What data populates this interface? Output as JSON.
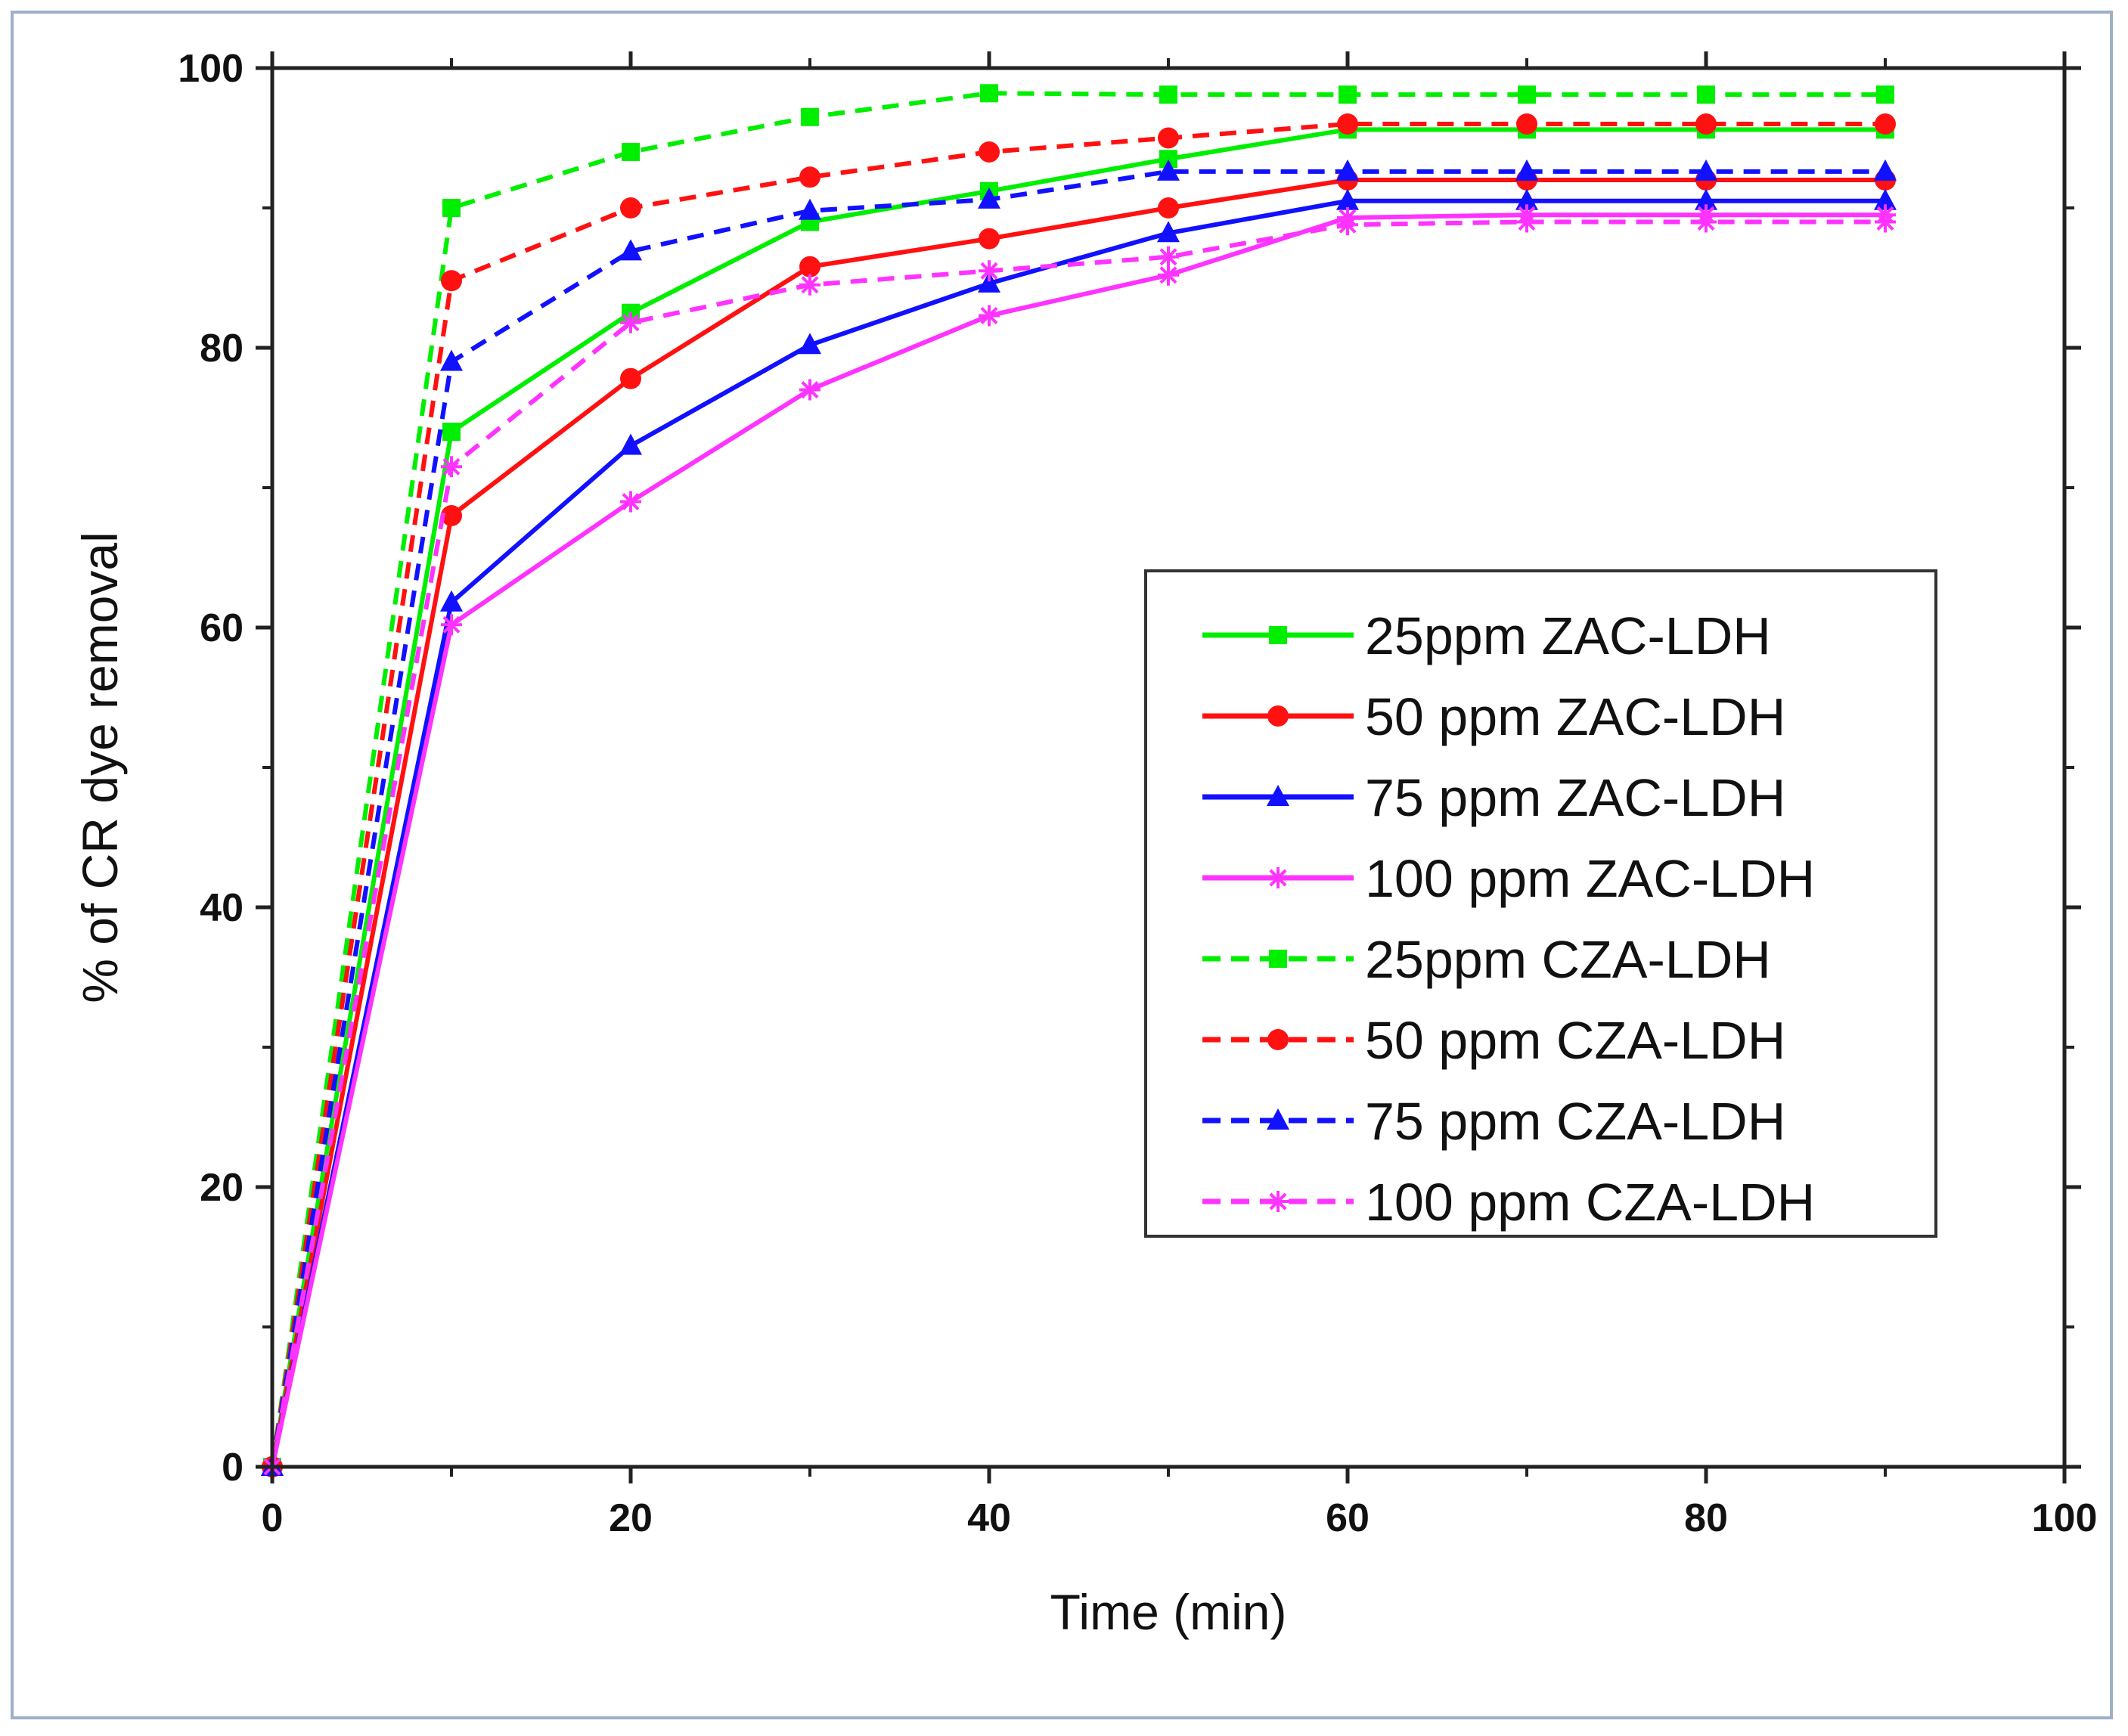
{
  "chart_data": {
    "type": "line",
    "title": "",
    "xlabel": "Time (min)",
    "ylabel": "% of CR dye removal",
    "xlim": [
      0,
      100
    ],
    "ylim": [
      0,
      100
    ],
    "xticks": [
      0,
      20,
      40,
      60,
      80,
      100
    ],
    "yticks": [
      0,
      20,
      40,
      60,
      80,
      100
    ],
    "grid": false,
    "legend_position": "center-right",
    "x": [
      0,
      10,
      20,
      30,
      40,
      50,
      60,
      70,
      80,
      90
    ],
    "series": [
      {
        "name": "25ppm ZAC-LDH",
        "color": "#00ee00",
        "dash": "solid",
        "marker": "square",
        "values": [
          0,
          74,
          82.5,
          89,
          91.2,
          93.5,
          95.6,
          95.6,
          95.6,
          95.6
        ]
      },
      {
        "name": "50 ppm ZAC-LDH",
        "color": "#ff1111",
        "dash": "solid",
        "marker": "circle",
        "values": [
          0,
          68,
          77.8,
          85.8,
          87.8,
          90,
          92,
          92,
          92,
          92
        ]
      },
      {
        "name": "75 ppm ZAC-LDH",
        "color": "#1111ff",
        "dash": "solid",
        "marker": "triangle",
        "values": [
          0,
          61.8,
          73,
          80.2,
          84.6,
          88.2,
          90.5,
          90.5,
          90.5,
          90.5
        ]
      },
      {
        "name": "100 ppm ZAC-LDH",
        "color": "#ff33ff",
        "dash": "solid",
        "marker": "star",
        "values": [
          0,
          60.2,
          69,
          77,
          82.3,
          85.2,
          89.3,
          89.5,
          89.5,
          89.5
        ]
      },
      {
        "name": "25ppm CZA-LDH",
        "color": "#00ee00",
        "dash": "dashed",
        "marker": "square",
        "values": [
          0,
          90,
          94,
          96.5,
          98.2,
          98.1,
          98.1,
          98.1,
          98.1,
          98.1
        ]
      },
      {
        "name": "50 ppm CZA-LDH",
        "color": "#ff1111",
        "dash": "dashed",
        "marker": "circle",
        "values": [
          0,
          84.8,
          90,
          92.2,
          94,
          95,
          96,
          96,
          96,
          96
        ]
      },
      {
        "name": "75 ppm CZA-LDH",
        "color": "#1111ff",
        "dash": "dashed",
        "marker": "triangle",
        "values": [
          0,
          79,
          86.9,
          89.8,
          90.6,
          92.6,
          92.6,
          92.6,
          92.6,
          92.6
        ]
      },
      {
        "name": "100 ppm CZA-LDH",
        "color": "#ff33ff",
        "dash": "dashed",
        "marker": "star",
        "values": [
          0,
          71.5,
          81.8,
          84.5,
          85.5,
          86.5,
          88.8,
          89,
          89,
          89
        ]
      }
    ]
  }
}
